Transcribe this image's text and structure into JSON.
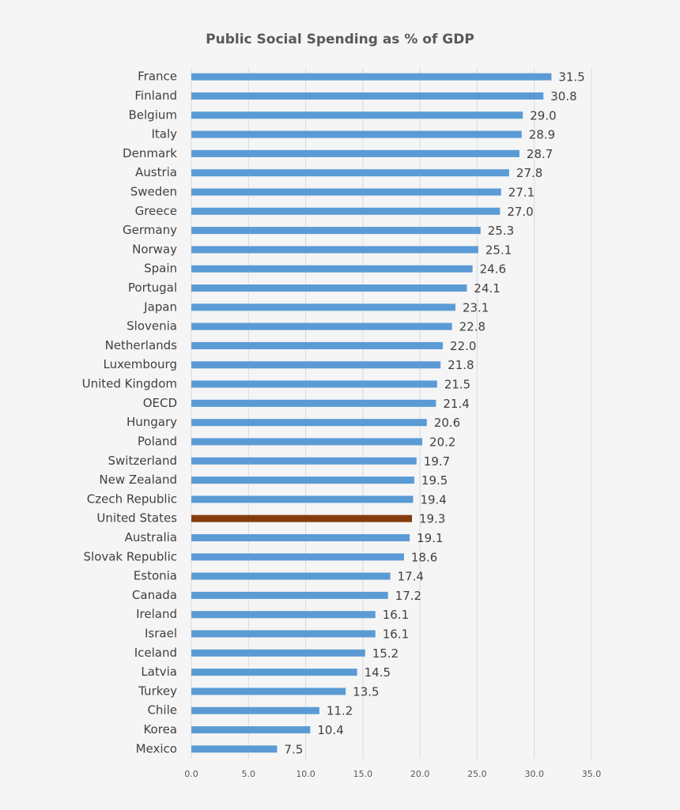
{
  "chart_data": {
    "type": "hbar",
    "title": "Public Social Spending as % of GDP",
    "categories": [
      "France",
      "Finland",
      "Belgium",
      "Italy",
      "Denmark",
      "Austria",
      "Sweden",
      "Greece",
      "Germany",
      "Norway",
      "Spain",
      "Portugal",
      "Japan",
      "Slovenia",
      "Netherlands",
      "Luxembourg",
      "United Kingdom",
      "OECD",
      "Hungary",
      "Poland",
      "Switzerland",
      "New Zealand",
      "Czech Republic",
      "United States",
      "Australia",
      "Slovak Republic",
      "Estonia",
      "Canada",
      "Ireland",
      "Israel",
      "Iceland",
      "Latvia",
      "Turkey",
      "Chile",
      "Korea",
      "Mexico"
    ],
    "values": [
      31.5,
      30.8,
      29.0,
      28.9,
      28.7,
      27.8,
      27.1,
      27.0,
      25.3,
      25.1,
      24.6,
      24.1,
      23.1,
      22.8,
      22.0,
      21.8,
      21.5,
      21.4,
      20.6,
      20.2,
      19.7,
      19.5,
      19.4,
      19.3,
      19.1,
      18.6,
      17.4,
      17.2,
      16.1,
      16.1,
      15.2,
      14.5,
      13.5,
      11.2,
      10.4,
      7.5
    ],
    "value_labels": [
      "31.5",
      "30.8",
      "29.0",
      "28.9",
      "28.7",
      "27.8",
      "27.1",
      "27.0",
      "25.3",
      "25.1",
      "24.6",
      "24.1",
      "23.1",
      "22.8",
      "22.0",
      "21.8",
      "21.5",
      "21.4",
      "20.6",
      "20.2",
      "19.7",
      "19.5",
      "19.4",
      "19.3",
      "19.1",
      "18.6",
      "17.4",
      "17.2",
      "16.1",
      "16.1",
      "15.2",
      "14.5",
      "13.5",
      "11.2",
      "10.4",
      "7.5"
    ],
    "colors": [
      "#5b9bd5",
      "#5b9bd5",
      "#5b9bd5",
      "#5b9bd5",
      "#5b9bd5",
      "#5b9bd5",
      "#5b9bd5",
      "#5b9bd5",
      "#5b9bd5",
      "#5b9bd5",
      "#5b9bd5",
      "#5b9bd5",
      "#5b9bd5",
      "#5b9bd5",
      "#5b9bd5",
      "#5b9bd5",
      "#5b9bd5",
      "#5b9bd5",
      "#5b9bd5",
      "#5b9bd5",
      "#5b9bd5",
      "#5b9bd5",
      "#5b9bd5",
      "#843c0c",
      "#5b9bd5",
      "#5b9bd5",
      "#5b9bd5",
      "#5b9bd5",
      "#5b9bd5",
      "#5b9bd5",
      "#5b9bd5",
      "#5b9bd5",
      "#5b9bd5",
      "#5b9bd5",
      "#5b9bd5",
      "#5b9bd5"
    ],
    "xlim": [
      0,
      35
    ],
    "xticks": [
      {
        "value": 0,
        "label": "0.0"
      },
      {
        "value": 5,
        "label": "5.0"
      },
      {
        "value": 10,
        "label": "10.0"
      },
      {
        "value": 15,
        "label": "15.0"
      },
      {
        "value": 20,
        "label": "20.0"
      },
      {
        "value": 25,
        "label": "25.0"
      },
      {
        "value": 30,
        "label": "30.0"
      },
      {
        "value": 35,
        "label": "35.0"
      }
    ],
    "grid": true
  }
}
